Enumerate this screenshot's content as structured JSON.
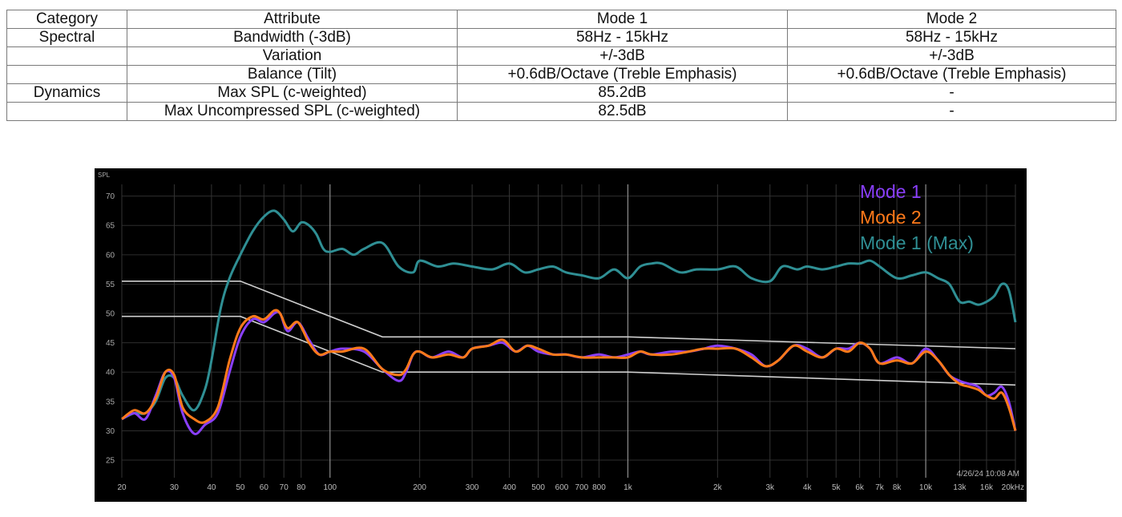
{
  "table": {
    "headers": [
      "Category",
      "Attribute",
      "Mode 1",
      "Mode 2"
    ],
    "rows": [
      [
        "Spectral",
        "Bandwidth (-3dB)",
        "58Hz - 15kHz",
        "58Hz - 15kHz"
      ],
      [
        "",
        "Variation",
        "+/-3dB",
        "+/-3dB"
      ],
      [
        "",
        "Balance (Tilt)",
        "+0.6dB/Octave (Treble Emphasis)",
        "+0.6dB/Octave (Treble Emphasis)"
      ],
      [
        "Dynamics",
        "Max SPL (c-weighted)",
        "85.2dB",
        "-"
      ],
      [
        "",
        "Max Uncompressed SPL (c-weighted)",
        "82.5dB",
        "-"
      ]
    ]
  },
  "chart_data": {
    "type": "line",
    "ylabel": "SPL",
    "x_scale": "log",
    "xlim": [
      20,
      20000
    ],
    "ylim": [
      22,
      72
    ],
    "yticks": [
      25,
      30,
      35,
      40,
      45,
      50,
      55,
      60,
      65,
      70
    ],
    "xticks": [
      {
        "value": 20,
        "label": "20"
      },
      {
        "value": 30,
        "label": "30"
      },
      {
        "value": 40,
        "label": "40"
      },
      {
        "value": 50,
        "label": "50"
      },
      {
        "value": 60,
        "label": "60"
      },
      {
        "value": 70,
        "label": "70"
      },
      {
        "value": 80,
        "label": "80"
      },
      {
        "value": 100,
        "label": "100"
      },
      {
        "value": 200,
        "label": "200"
      },
      {
        "value": 300,
        "label": "300"
      },
      {
        "value": 400,
        "label": "400"
      },
      {
        "value": 500,
        "label": "500"
      },
      {
        "value": 600,
        "label": "600"
      },
      {
        "value": 700,
        "label": "700"
      },
      {
        "value": 800,
        "label": "800"
      },
      {
        "value": 1000,
        "label": "1k"
      },
      {
        "value": 2000,
        "label": "2k"
      },
      {
        "value": 3000,
        "label": "3k"
      },
      {
        "value": 4000,
        "label": "4k"
      },
      {
        "value": 5000,
        "label": "5k"
      },
      {
        "value": 6000,
        "label": "6k"
      },
      {
        "value": 7000,
        "label": "7k"
      },
      {
        "value": 8000,
        "label": "8k"
      },
      {
        "value": 10000,
        "label": "10k"
      },
      {
        "value": 13000,
        "label": "13k"
      },
      {
        "value": 16000,
        "label": "16k"
      },
      {
        "value": 20000,
        "label": "20kHz"
      }
    ],
    "timestamp": "4/26/24 10:08 AM",
    "grid": true,
    "legend_position": "top-right",
    "background": "#000000",
    "series": [
      {
        "name": "Mode 1",
        "color": "#8a3ffc",
        "x": [
          20,
          22,
          24,
          26,
          28,
          30,
          32,
          35,
          38,
          42,
          46,
          50,
          55,
          60,
          65,
          68,
          72,
          78,
          85,
          92,
          100,
          110,
          130,
          150,
          170,
          180,
          190,
          200,
          220,
          250,
          280,
          300,
          340,
          380,
          420,
          460,
          500,
          560,
          620,
          700,
          800,
          900,
          1000,
          1100,
          1200,
          1400,
          1600,
          1800,
          2000,
          2300,
          2600,
          2900,
          3200,
          3600,
          4000,
          4500,
          5000,
          5500,
          6000,
          6500,
          7000,
          8000,
          9000,
          10000,
          11000,
          12000,
          13000,
          14000,
          15000,
          16000,
          17000,
          18000,
          19000,
          20000
        ],
        "y": [
          32,
          33,
          32,
          36,
          40,
          39,
          33,
          29.5,
          31,
          33,
          40,
          46,
          49,
          48.5,
          50,
          50,
          47,
          48.5,
          45.5,
          43,
          43.5,
          44,
          43.5,
          40.5,
          38.5,
          40,
          43,
          43.5,
          42.5,
          43.5,
          42.5,
          44,
          44.5,
          45,
          43.5,
          44.5,
          43.5,
          43,
          43,
          42.5,
          43,
          42.5,
          43,
          43.5,
          43,
          43.5,
          43.5,
          44,
          44.5,
          44,
          43,
          41,
          42,
          44.5,
          44,
          42.5,
          44,
          44,
          45,
          44,
          41.5,
          42.5,
          41.5,
          44,
          42,
          39.5,
          38.5,
          38,
          37.5,
          36,
          36.5,
          37.5,
          35,
          30
        ]
      },
      {
        "name": "Mode 2",
        "color": "#ff7a1a",
        "x": [
          20,
          22,
          24,
          26,
          28,
          30,
          32,
          35,
          38,
          42,
          46,
          50,
          55,
          60,
          65,
          68,
          72,
          78,
          85,
          92,
          100,
          110,
          130,
          150,
          170,
          180,
          190,
          200,
          220,
          250,
          280,
          300,
          340,
          380,
          420,
          460,
          500,
          560,
          620,
          700,
          800,
          900,
          1000,
          1100,
          1200,
          1400,
          1600,
          1800,
          2000,
          2300,
          2600,
          2900,
          3200,
          3600,
          4000,
          4500,
          5000,
          5500,
          6000,
          6500,
          7000,
          8000,
          9000,
          10000,
          11000,
          12000,
          13000,
          14000,
          15000,
          16000,
          17000,
          18000,
          19000,
          20000
        ],
        "y": [
          32,
          33.5,
          33,
          35.5,
          40,
          39.5,
          34,
          32,
          31.5,
          34,
          42,
          47.5,
          49.5,
          49,
          50.5,
          50,
          47.5,
          48.5,
          45,
          43,
          43.5,
          43.5,
          44,
          40.5,
          39.5,
          40.5,
          43,
          43.5,
          42.5,
          43,
          42.5,
          44,
          44.5,
          45.5,
          43.5,
          44.5,
          44,
          43,
          43,
          42.5,
          42.5,
          42.5,
          42.5,
          43.5,
          43,
          43,
          43.5,
          44,
          44,
          44,
          42.5,
          41,
          42,
          44.5,
          43.5,
          42.5,
          44,
          43.5,
          45,
          44,
          41.5,
          42,
          41.5,
          43.5,
          42,
          39.5,
          38,
          37.5,
          37,
          36,
          35.5,
          36.5,
          34,
          30
        ]
      },
      {
        "name": "Mode 1 (Max)",
        "color": "#2f8f94",
        "x": [
          20,
          22,
          24,
          26,
          28,
          30,
          32,
          35,
          38,
          40,
          43,
          46,
          50,
          55,
          60,
          65,
          70,
          75,
          80,
          85,
          90,
          95,
          100,
          110,
          120,
          130,
          150,
          170,
          190,
          200,
          230,
          260,
          300,
          350,
          400,
          450,
          500,
          560,
          620,
          700,
          800,
          900,
          1000,
          1100,
          1200,
          1300,
          1500,
          1700,
          2000,
          2300,
          2600,
          3000,
          3300,
          3700,
          4000,
          4500,
          5000,
          5500,
          6000,
          6500,
          7000,
          8000,
          9000,
          10000,
          11000,
          12000,
          13000,
          14000,
          15000,
          16000,
          17000,
          18000,
          19000,
          20000
        ],
        "y": [
          32,
          33,
          33,
          35,
          39,
          39,
          36,
          33.5,
          37,
          42,
          51,
          56,
          60,
          64,
          66.5,
          67.5,
          66,
          64,
          65.5,
          65,
          63.5,
          61,
          60.5,
          61,
          60,
          61,
          62,
          58,
          57,
          59,
          58,
          58.5,
          58,
          57.5,
          58.5,
          57,
          57.5,
          58,
          57,
          56.5,
          56,
          57.5,
          56,
          58,
          58.5,
          58.5,
          57,
          57.5,
          57.5,
          58,
          56,
          55.5,
          58,
          57.5,
          58,
          57.5,
          58,
          58.5,
          58.5,
          59,
          58,
          56,
          56.5,
          57,
          56,
          55,
          52,
          52,
          51.5,
          52,
          53,
          55,
          54,
          48.5
        ]
      },
      {
        "name": "",
        "color": "#cfcfcf",
        "x": [
          20,
          50,
          150,
          1000,
          20000
        ],
        "y": [
          55.5,
          55.5,
          46,
          46,
          44
        ]
      },
      {
        "name": "",
        "color": "#cfcfcf",
        "x": [
          20,
          50,
          150,
          1000,
          20000
        ],
        "y": [
          49.5,
          49.5,
          40,
          40,
          37.8
        ]
      }
    ]
  }
}
